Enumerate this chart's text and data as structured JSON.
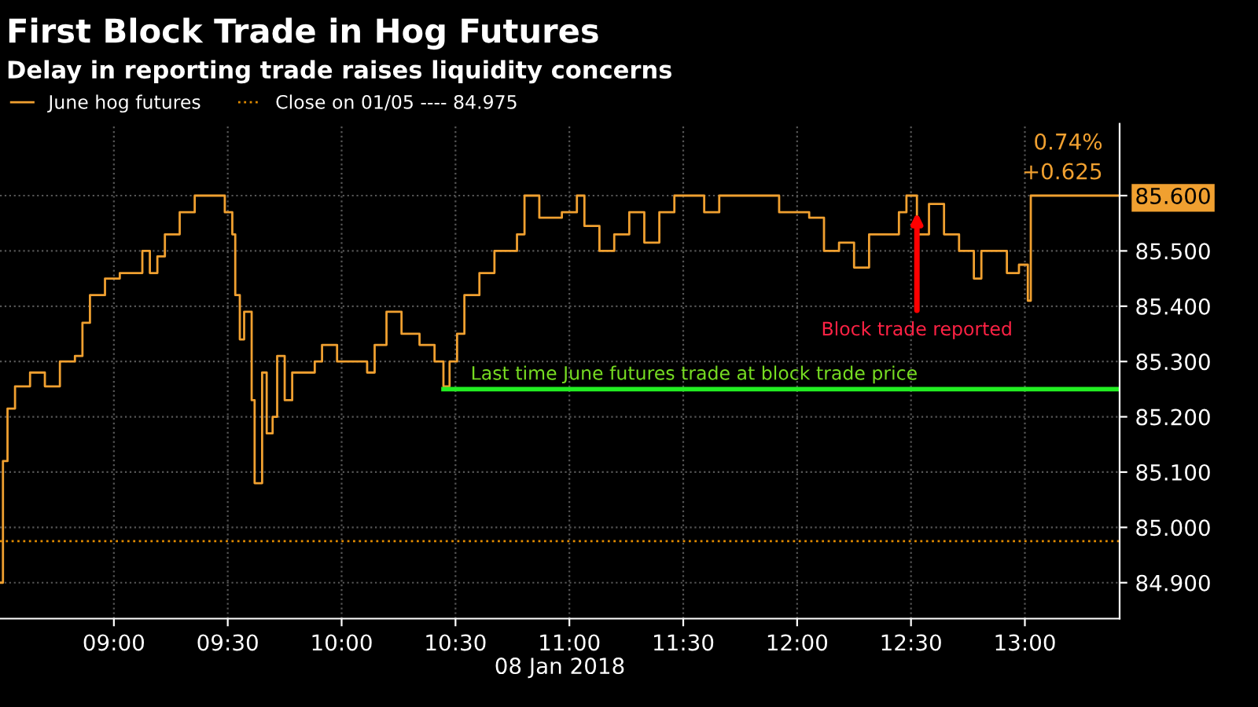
{
  "chart_data": {
    "type": "step",
    "title": "First Block Trade in Hog Futures",
    "subtitle": "Delay in reporting trade raises liquidity concerns",
    "xlabel": "08 Jan 2018",
    "xlim": [
      8.5,
      13.416
    ],
    "xticks": [
      {
        "value": 9,
        "label": "09:00"
      },
      {
        "value": 9.5,
        "label": "09:30"
      },
      {
        "value": 10,
        "label": "10:00"
      },
      {
        "value": 10.5,
        "label": "10:30"
      },
      {
        "value": 11,
        "label": "11:00"
      },
      {
        "value": 11.5,
        "label": "11:30"
      },
      {
        "value": 12,
        "label": "12:00"
      },
      {
        "value": 12.5,
        "label": "12:30"
      },
      {
        "value": 13,
        "label": "13:00"
      }
    ],
    "ylim": [
      84.835,
      85.73
    ],
    "yticks": [
      {
        "value": 84.9,
        "label": "84.900"
      },
      {
        "value": 85.0,
        "label": "85.000"
      },
      {
        "value": 85.1,
        "label": "85.100"
      },
      {
        "value": 85.2,
        "label": "85.200"
      },
      {
        "value": 85.3,
        "label": "85.300"
      },
      {
        "value": 85.4,
        "label": "85.400"
      },
      {
        "value": 85.5,
        "label": "85.500"
      },
      {
        "value": 85.6,
        "label": "85.600"
      }
    ],
    "grid": true,
    "legend": "top left",
    "marker": "none",
    "series": [
      {
        "name": "June hog futures",
        "color": "#f0a030",
        "x": [
          8.5,
          8.513,
          8.533,
          8.566,
          8.632,
          8.697,
          8.763,
          8.829,
          8.862,
          8.895,
          8.961,
          9.026,
          9.059,
          9.125,
          9.158,
          9.191,
          9.224,
          9.289,
          9.355,
          9.421,
          9.487,
          9.52,
          9.533,
          9.553,
          9.572,
          9.586,
          9.605,
          9.618,
          9.651,
          9.671,
          9.697,
          9.717,
          9.75,
          9.783,
          9.816,
          9.882,
          9.914,
          9.98,
          10.046,
          10.112,
          10.145,
          10.197,
          10.263,
          10.342,
          10.408,
          10.447,
          10.474,
          10.507,
          10.539,
          10.605,
          10.671,
          10.77,
          10.803,
          10.868,
          10.967,
          11.033,
          11.066,
          11.132,
          11.197,
          11.263,
          11.329,
          11.395,
          11.461,
          11.592,
          11.658,
          11.789,
          11.921,
          12.053,
          12.118,
          12.184,
          12.25,
          12.316,
          12.382,
          12.447,
          12.48,
          12.526,
          12.579,
          12.645,
          12.711,
          12.776,
          12.809,
          12.875,
          12.921,
          12.974,
          13.013,
          13.026,
          13.105,
          13.138,
          13.416
        ],
        "values": [
          84.9,
          85.12,
          85.215,
          85.255,
          85.28,
          85.255,
          85.3,
          85.31,
          85.37,
          85.42,
          85.45,
          85.46,
          85.46,
          85.5,
          85.46,
          85.49,
          85.53,
          85.57,
          85.6,
          85.6,
          85.57,
          85.53,
          85.42,
          85.34,
          85.39,
          85.39,
          85.23,
          85.08,
          85.28,
          85.17,
          85.2,
          85.31,
          85.23,
          85.28,
          85.28,
          85.3,
          85.33,
          85.3,
          85.3,
          85.28,
          85.33,
          85.39,
          85.35,
          85.33,
          85.3,
          85.255,
          85.3,
          85.35,
          85.42,
          85.46,
          85.5,
          85.53,
          85.6,
          85.56,
          85.57,
          85.6,
          85.545,
          85.5,
          85.53,
          85.57,
          85.515,
          85.57,
          85.6,
          85.57,
          85.6,
          85.6,
          85.57,
          85.56,
          85.5,
          85.515,
          85.47,
          85.53,
          85.53,
          85.57,
          85.6,
          85.53,
          85.585,
          85.53,
          85.5,
          85.45,
          85.5,
          85.5,
          85.46,
          85.475,
          85.41,
          85.6,
          85.6,
          85.6,
          85.6
        ]
      },
      {
        "name": "Close on 01/05 ---- 84.975",
        "color": "#e08a00",
        "type": "line",
        "line_style": "dotted",
        "x": [
          8.5,
          13.416
        ],
        "values": [
          84.975,
          84.975
        ]
      },
      {
        "color": "#22ee22",
        "type": "line",
        "line_style": "solid",
        "x": [
          10.447,
          13.416
        ],
        "values": [
          85.25,
          85.25
        ]
      }
    ],
    "annotations": [
      "Last time June futures trade at block trade price",
      {
        "text": "Block trade reported",
        "x": 12.526,
        "y": 85.57
      },
      "+0.625",
      "0.74%"
    ]
  }
}
